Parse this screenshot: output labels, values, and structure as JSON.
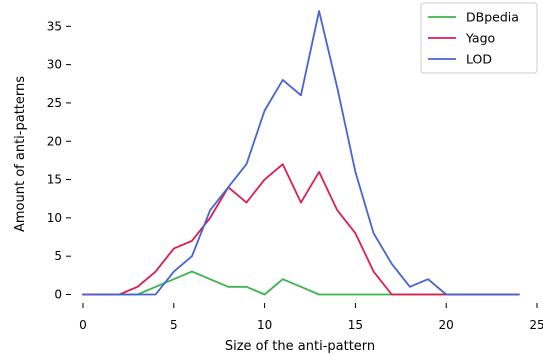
{
  "chart_data": {
    "type": "line",
    "xlabel": "Size of the anti-pattern",
    "ylabel": "Amount of anti-patterns",
    "xlim": [
      0,
      25
    ],
    "ylim": [
      0,
      37
    ],
    "x_ticks": [
      0,
      5,
      10,
      15,
      20,
      25
    ],
    "y_ticks": [
      0,
      5,
      10,
      15,
      20,
      25,
      30,
      35
    ],
    "grid": false,
    "legend_position": "top-right",
    "x": [
      0,
      1,
      2,
      3,
      4,
      5,
      6,
      7,
      8,
      9,
      10,
      11,
      12,
      13,
      14,
      15,
      16,
      17,
      18,
      19,
      20,
      21,
      22,
      23,
      24
    ],
    "series": [
      {
        "name": "DBpedia",
        "color": "#3cb44b",
        "values": [
          0,
          0,
          0,
          0,
          1,
          2,
          3,
          2,
          1,
          1,
          0,
          2,
          1,
          0,
          0,
          0,
          0,
          0,
          0,
          0,
          0,
          0,
          0,
          0,
          0
        ]
      },
      {
        "name": "Yago",
        "color": "#dc1e50",
        "values": [
          0,
          0,
          0,
          1,
          3,
          6,
          7,
          10,
          14,
          12,
          15,
          17,
          12,
          16,
          11,
          8,
          3,
          0,
          0,
          0,
          0,
          0,
          0,
          0,
          0
        ]
      },
      {
        "name": "LOD",
        "color": "#4664d2",
        "values": [
          0,
          0,
          0,
          0,
          0,
          3,
          5,
          11,
          14,
          17,
          24,
          28,
          26,
          37,
          27,
          16,
          8,
          4,
          1,
          2,
          0,
          0,
          0,
          0,
          0
        ]
      }
    ]
  }
}
